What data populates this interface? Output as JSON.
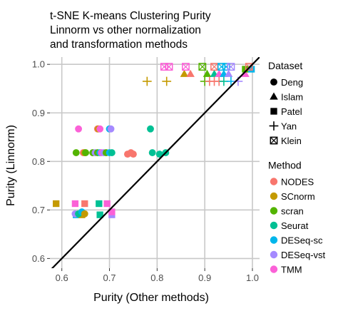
{
  "chart_data": {
    "type": "scatter",
    "title_lines": [
      "t-SNE K-means Clustering Purity",
      "Linnorm vs other normalization",
      "and transformation methods"
    ],
    "xlabel": "Purity (Other methods)",
    "ylabel": "Purity (Linnorm)",
    "xlim": [
      0.575,
      1.015
    ],
    "ylim": [
      0.58,
      1.015
    ],
    "xticks": [
      0.6,
      0.7,
      0.8,
      0.9,
      1.0
    ],
    "xtick_labels": [
      "0.6",
      "0.7",
      "0.8",
      "0.9",
      "1.0"
    ],
    "yticks": [
      0.6,
      0.7,
      0.8,
      0.9,
      1.0
    ],
    "ytick_labels": [
      "0.6",
      "0.7",
      "0.8",
      "0.9",
      "1.0"
    ],
    "grid": true,
    "reference_line": "y = x",
    "legend_position": "right",
    "dataset_legend": {
      "title": "Dataset",
      "items": [
        {
          "label": "Deng",
          "shape": "circle"
        },
        {
          "label": "Islam",
          "shape": "triangle"
        },
        {
          "label": "Patel",
          "shape": "square"
        },
        {
          "label": "Yan",
          "shape": "plus"
        },
        {
          "label": "Klein",
          "shape": "boxx"
        }
      ]
    },
    "method_legend": {
      "title": "Method",
      "items": [
        {
          "label": "NODES",
          "color": "#F8766D"
        },
        {
          "label": "SCnorm",
          "color": "#C49A00"
        },
        {
          "label": "scran",
          "color": "#53B400"
        },
        {
          "label": "Seurat",
          "color": "#00C094"
        },
        {
          "label": "DESeq-sc",
          "color": "#00B6EB"
        },
        {
          "label": "DESeq-vst",
          "color": "#A58AFF"
        },
        {
          "label": "TMM",
          "color": "#FB61D7"
        }
      ]
    },
    "points": [
      {
        "x": 0.635,
        "y": 0.867,
        "dataset": "Deng",
        "method": "TMM"
      },
      {
        "x": 0.675,
        "y": 0.867,
        "dataset": "Deng",
        "method": "NODES"
      },
      {
        "x": 0.677,
        "y": 0.867,
        "dataset": "Deng",
        "method": "SCnorm"
      },
      {
        "x": 0.68,
        "y": 0.867,
        "dataset": "Deng",
        "method": "TMM"
      },
      {
        "x": 0.7,
        "y": 0.867,
        "dataset": "Deng",
        "method": "DESeq-sc"
      },
      {
        "x": 0.703,
        "y": 0.867,
        "dataset": "Deng",
        "method": "DESeq-vst"
      },
      {
        "x": 0.786,
        "y": 0.867,
        "dataset": "Deng",
        "method": "Seurat"
      },
      {
        "x": 0.63,
        "y": 0.818,
        "dataset": "Deng",
        "method": "scran"
      },
      {
        "x": 0.645,
        "y": 0.818,
        "dataset": "Deng",
        "method": "NODES"
      },
      {
        "x": 0.648,
        "y": 0.818,
        "dataset": "Deng",
        "method": "SCnorm"
      },
      {
        "x": 0.65,
        "y": 0.818,
        "dataset": "Deng",
        "method": "scran"
      },
      {
        "x": 0.665,
        "y": 0.818,
        "dataset": "Deng",
        "method": "scran"
      },
      {
        "x": 0.67,
        "y": 0.818,
        "dataset": "Deng",
        "method": "DESeq-vst"
      },
      {
        "x": 0.675,
        "y": 0.818,
        "dataset": "Deng",
        "method": "scran"
      },
      {
        "x": 0.68,
        "y": 0.818,
        "dataset": "Deng",
        "method": "DESeq-sc"
      },
      {
        "x": 0.683,
        "y": 0.818,
        "dataset": "Deng",
        "method": "TMM"
      },
      {
        "x": 0.688,
        "y": 0.818,
        "dataset": "Deng",
        "method": "DESeq-vst"
      },
      {
        "x": 0.693,
        "y": 0.818,
        "dataset": "Deng",
        "method": "scran"
      },
      {
        "x": 0.7,
        "y": 0.818,
        "dataset": "Deng",
        "method": "DESeq-sc"
      },
      {
        "x": 0.705,
        "y": 0.818,
        "dataset": "Deng",
        "method": "Seurat"
      },
      {
        "x": 0.738,
        "y": 0.815,
        "dataset": "Deng",
        "method": "NODES"
      },
      {
        "x": 0.745,
        "y": 0.818,
        "dataset": "Deng",
        "method": "NODES"
      },
      {
        "x": 0.75,
        "y": 0.815,
        "dataset": "Deng",
        "method": "NODES"
      },
      {
        "x": 0.79,
        "y": 0.818,
        "dataset": "Deng",
        "method": "Seurat"
      },
      {
        "x": 0.805,
        "y": 0.815,
        "dataset": "Deng",
        "method": "Seurat"
      },
      {
        "x": 0.818,
        "y": 0.818,
        "dataset": "Deng",
        "method": "Seurat"
      },
      {
        "x": 0.857,
        "y": 0.98,
        "dataset": "Islam",
        "method": "SCnorm"
      },
      {
        "x": 0.87,
        "y": 0.98,
        "dataset": "Islam",
        "method": "NODES"
      },
      {
        "x": 0.905,
        "y": 0.98,
        "dataset": "Islam",
        "method": "scran"
      },
      {
        "x": 0.92,
        "y": 0.98,
        "dataset": "Islam",
        "method": "Seurat"
      },
      {
        "x": 0.93,
        "y": 0.98,
        "dataset": "Islam",
        "method": "TMM"
      },
      {
        "x": 0.94,
        "y": 0.98,
        "dataset": "Islam",
        "method": "DESeq-sc"
      },
      {
        "x": 0.95,
        "y": 0.98,
        "dataset": "Islam",
        "method": "DESeq-vst"
      },
      {
        "x": 0.985,
        "y": 0.98,
        "dataset": "Islam",
        "method": "TMM"
      },
      {
        "x": 0.991,
        "y": 0.99,
        "dataset": "Islam",
        "method": "NODES"
      },
      {
        "x": 0.985,
        "y": 0.99,
        "dataset": "Patel",
        "method": "scran"
      },
      {
        "x": 0.998,
        "y": 0.99,
        "dataset": "Patel",
        "method": "DESeq-sc"
      },
      {
        "x": 0.588,
        "y": 0.713,
        "dataset": "Patel",
        "method": "SCnorm"
      },
      {
        "x": 0.628,
        "y": 0.713,
        "dataset": "Patel",
        "method": "TMM"
      },
      {
        "x": 0.648,
        "y": 0.713,
        "dataset": "Patel",
        "method": "NODES"
      },
      {
        "x": 0.678,
        "y": 0.713,
        "dataset": "Patel",
        "method": "Seurat"
      },
      {
        "x": 0.695,
        "y": 0.713,
        "dataset": "Patel",
        "method": "TMM"
      },
      {
        "x": 0.63,
        "y": 0.69,
        "dataset": "Patel",
        "method": "DESeq-sc"
      },
      {
        "x": 0.642,
        "y": 0.69,
        "dataset": "Patel",
        "method": "SCnorm"
      },
      {
        "x": 0.68,
        "y": 0.69,
        "dataset": "Patel",
        "method": "Seurat"
      },
      {
        "x": 0.705,
        "y": 0.69,
        "dataset": "Patel",
        "method": "DESeq-vst"
      },
      {
        "x": 0.705,
        "y": 0.696,
        "dataset": "Patel",
        "method": "TMM"
      },
      {
        "x": 0.628,
        "y": 0.692,
        "dataset": "Deng",
        "method": "DESeq-vst"
      },
      {
        "x": 0.635,
        "y": 0.692,
        "dataset": "Deng",
        "method": "Seurat"
      },
      {
        "x": 0.642,
        "y": 0.696,
        "dataset": "Deng",
        "method": "DESeq-sc"
      },
      {
        "x": 0.648,
        "y": 0.692,
        "dataset": "Deng",
        "method": "SCnorm"
      },
      {
        "x": 0.779,
        "y": 0.965,
        "dataset": "Yan",
        "method": "SCnorm"
      },
      {
        "x": 0.82,
        "y": 0.965,
        "dataset": "Yan",
        "method": "SCnorm"
      },
      {
        "x": 0.9,
        "y": 0.965,
        "dataset": "Yan",
        "method": "scran"
      },
      {
        "x": 0.91,
        "y": 0.965,
        "dataset": "Yan",
        "method": "NODES"
      },
      {
        "x": 0.92,
        "y": 0.965,
        "dataset": "Yan",
        "method": "NODES"
      },
      {
        "x": 0.93,
        "y": 0.965,
        "dataset": "Yan",
        "method": "NODES"
      },
      {
        "x": 0.94,
        "y": 0.965,
        "dataset": "Yan",
        "method": "Seurat"
      },
      {
        "x": 0.955,
        "y": 0.965,
        "dataset": "Yan",
        "method": "DESeq-sc"
      },
      {
        "x": 0.97,
        "y": 0.965,
        "dataset": "Yan",
        "method": "DESeq-vst"
      },
      {
        "x": 0.815,
        "y": 0.995,
        "dataset": "Klein",
        "method": "TMM"
      },
      {
        "x": 0.825,
        "y": 0.995,
        "dataset": "Klein",
        "method": "TMM"
      },
      {
        "x": 0.86,
        "y": 0.995,
        "dataset": "Klein",
        "method": "TMM"
      },
      {
        "x": 0.895,
        "y": 0.995,
        "dataset": "Klein",
        "method": "scran"
      },
      {
        "x": 0.92,
        "y": 0.995,
        "dataset": "Klein",
        "method": "NODES"
      },
      {
        "x": 0.935,
        "y": 0.995,
        "dataset": "Klein",
        "method": "DESeq-sc"
      },
      {
        "x": 0.945,
        "y": 0.995,
        "dataset": "Klein",
        "method": "DESeq-sc"
      },
      {
        "x": 0.955,
        "y": 0.995,
        "dataset": "Klein",
        "method": "DESeq-vst"
      },
      {
        "x": 0.993,
        "y": 0.995,
        "dataset": "Klein",
        "method": "NODES"
      }
    ]
  }
}
